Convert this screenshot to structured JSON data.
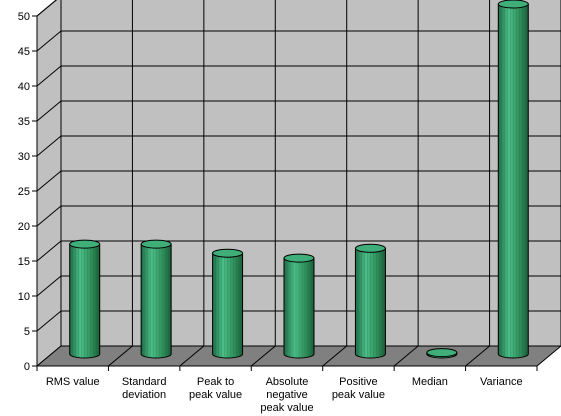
{
  "chart_data": {
    "type": "bar",
    "style": "3d-cylinder",
    "title": "",
    "xlabel": "",
    "ylabel": "",
    "ylim": [
      0,
      50
    ],
    "ytick_step": 5,
    "grid": true,
    "legend": "none",
    "categories": [
      [
        "RMS value"
      ],
      [
        "Standard",
        "deviation"
      ],
      [
        "Peak to",
        "peak value"
      ],
      [
        "Absolute",
        "negative",
        "peak value"
      ],
      [
        "Positive",
        "peak value"
      ],
      [
        "Median"
      ],
      [
        "Variance"
      ]
    ],
    "values": [
      15.7,
      15.7,
      14.4,
      13.7,
      15.1,
      0.2,
      50.0
    ],
    "colors": {
      "wall": "#c0c0c0",
      "floor": "#808080",
      "bar_fill": "#2e8b57",
      "bar_highlight": "#4cc08a",
      "bar_shadow": "#1f6b44",
      "bar_top": "#3fae78",
      "grid": "#000000"
    }
  }
}
